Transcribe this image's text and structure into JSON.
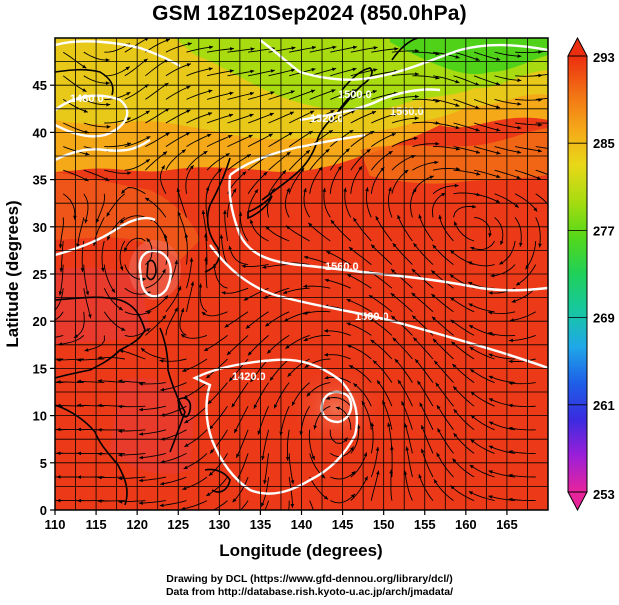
{
  "title": "GSM 18Z10Sep2024 (850.0hPa)",
  "chart_data": {
    "type": "heatmap",
    "title": "GSM 18Z10Sep2024 (850.0hPa)",
    "xlabel": "Longitude (degrees)",
    "ylabel": "Latitude  (degrees)",
    "xlim": [
      110,
      170
    ],
    "ylim": [
      0,
      50
    ],
    "x_ticks": [
      110,
      115,
      120,
      125,
      130,
      135,
      140,
      145,
      150,
      155,
      160,
      165
    ],
    "y_ticks": [
      0,
      5,
      10,
      15,
      20,
      25,
      30,
      35,
      40,
      45
    ],
    "grid": true,
    "colorbar": {
      "min": 253,
      "max": 293,
      "ticks": [
        293,
        285,
        277,
        269,
        261,
        253
      ],
      "colors": [
        "#e8249b",
        "#9c1fd8",
        "#3a2be0",
        "#1e5fe8",
        "#1fa8e8",
        "#17c8a0",
        "#1fd05a",
        "#54d81a",
        "#a8dc10",
        "#e8d818",
        "#f5a818",
        "#f26f14",
        "#ec2e10"
      ]
    },
    "contours": [
      {
        "label": "1420.0"
      },
      {
        "label": "1480.0"
      },
      {
        "label": "1500.0"
      },
      {
        "label": "1520.0"
      },
      {
        "label": "1560.0"
      }
    ],
    "fields": [
      "temperature (K)",
      "geopotential height contours",
      "wind streamlines"
    ]
  },
  "credit": {
    "line1": "Drawing by DCL (https://www.gfd-dennou.org/library/dcl/)",
    "line2": "Data from http://database.rish.kyoto-u.ac.jp/arch/jmadata/"
  }
}
